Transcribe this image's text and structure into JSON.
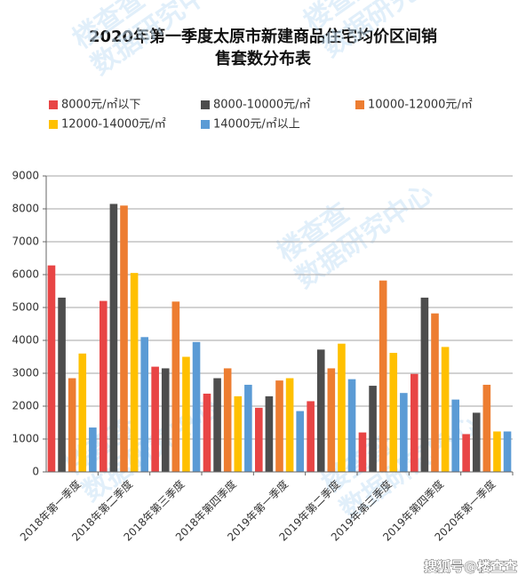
{
  "chart_data": {
    "type": "bar",
    "title": "2020年第一季度太原市新建商品住宅均价区间销",
    "subtitle": "售套数分布表",
    "categories": [
      "2018年第一季度",
      "2018年第二季度",
      "2018年第三季度",
      "2018年第四季度",
      "2019年第一季度",
      "2019年第二季度",
      "2019年第三季度",
      "2019年第四季度",
      "2020年第一季度"
    ],
    "series": [
      {
        "name": "8000元/㎡以下",
        "color": "#e84545",
        "values": [
          6280,
          5200,
          3200,
          2380,
          1950,
          2150,
          1200,
          2980,
          1150
        ]
      },
      {
        "name": "8000-10000元/㎡",
        "color": "#4d4d4d",
        "values": [
          5300,
          8150,
          3150,
          2850,
          2300,
          3720,
          2620,
          5300,
          1800
        ]
      },
      {
        "name": "10000-12000元/㎡",
        "color": "#ed7d31",
        "values": [
          2850,
          8100,
          5180,
          3150,
          2780,
          3150,
          5820,
          4820,
          2650
        ]
      },
      {
        "name": "12000-14000元/㎡",
        "color": "#ffc000",
        "values": [
          3600,
          6050,
          3500,
          2300,
          2850,
          3900,
          3620,
          3800,
          1230
        ]
      },
      {
        "name": "14000元/㎡以上",
        "color": "#5b9bd5",
        "values": [
          1350,
          4100,
          3950,
          2650,
          1850,
          2820,
          2400,
          2200,
          1230
        ]
      }
    ],
    "ylim": [
      0,
      9000
    ],
    "yticks": [
      0,
      1000,
      2000,
      3000,
      4000,
      5000,
      6000,
      7000,
      8000,
      9000
    ],
    "grid": true,
    "legend": "top",
    "watermark": [
      "楼查查",
      "数据研究中心"
    ],
    "footer": "搜狐号@楼查查"
  }
}
